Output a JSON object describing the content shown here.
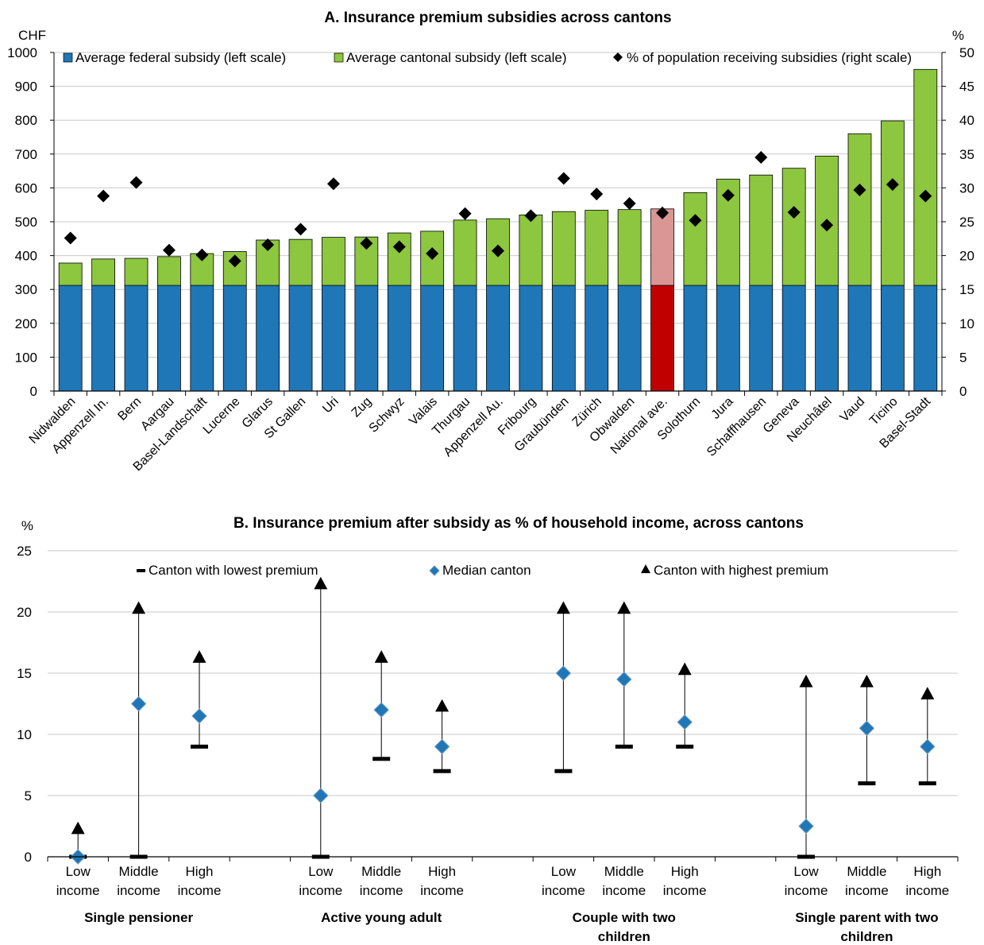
{
  "chart_data": [
    {
      "type": "bar",
      "stacked": true,
      "title": "A. Insurance premium subsidies across cantons",
      "left_unit": "CHF",
      "right_unit": "%",
      "ylim": [
        0,
        1000
      ],
      "yticks": [
        0,
        100,
        200,
        300,
        400,
        500,
        600,
        700,
        800,
        900,
        1000
      ],
      "y2lim": [
        0,
        50
      ],
      "y2ticks": [
        0,
        5,
        10,
        15,
        20,
        25,
        30,
        35,
        40,
        45,
        50
      ],
      "grid": true,
      "legend_position": "top",
      "highlight_category": "National ave.",
      "categories": [
        "Nidwalden",
        "Appenzell In.",
        "Bern",
        "Aargau",
        "Basel-Landschaft",
        "Lucerne",
        "Glarus",
        "St Gallen",
        "Uri",
        "Zug",
        "Schwyz",
        "Valais",
        "Thurgau",
        "Appenzell Au.",
        "Fribourg",
        "Graubünden",
        "Zürich",
        "Obwalden",
        "National ave.",
        "Solothurn",
        "Jura",
        "Schaffhausen",
        "Geneva",
        "Neuchâtel",
        "Vaud",
        "Ticino",
        "Basel-Stadt"
      ],
      "series": [
        {
          "name": "Average federal subsidy (left scale)",
          "axis": "left",
          "kind": "bar",
          "color": "#1f77b8",
          "highlight_color": "#c00000",
          "values": [
            312,
            312,
            312,
            312,
            312,
            312,
            312,
            312,
            312,
            312,
            312,
            312,
            312,
            312,
            312,
            312,
            312,
            312,
            312,
            312,
            312,
            312,
            312,
            312,
            312,
            312,
            312
          ]
        },
        {
          "name": "Average cantonal subsidy (left scale)",
          "axis": "left",
          "kind": "bar",
          "color": "#8dc63f",
          "highlight_color": "#d99694",
          "values": [
            66,
            78,
            80,
            85,
            94,
            100,
            134,
            136,
            142,
            143,
            155,
            160,
            193,
            197,
            208,
            218,
            222,
            224,
            226,
            274,
            314,
            326,
            346,
            382,
            448,
            486,
            638
          ]
        },
        {
          "name": "% of population receiving subsidies (right scale)",
          "axis": "right",
          "kind": "marker",
          "marker": "diamond",
          "color": "#000000",
          "values": [
            22.6,
            28.8,
            30.8,
            20.8,
            20.1,
            19.2,
            21.6,
            23.9,
            30.6,
            21.8,
            21.3,
            20.3,
            26.2,
            20.7,
            25.9,
            31.4,
            29.1,
            27.7,
            26.3,
            25.2,
            28.9,
            34.5,
            26.4,
            24.5,
            29.7,
            30.5,
            28.8
          ]
        }
      ]
    },
    {
      "type": "range",
      "title": "B. Insurance premium after subsidy as % of household income, across cantons",
      "y_unit": "%",
      "ylim": [
        0,
        25
      ],
      "yticks": [
        0,
        5,
        10,
        15,
        20,
        25
      ],
      "grid": true,
      "legend_position": "top",
      "legend": [
        {
          "name": "Canton with lowest premium",
          "marker": "dash",
          "color": "#000000"
        },
        {
          "name": "Median canton",
          "marker": "diamond",
          "color": "#1f77b8"
        },
        {
          "name": "Canton with highest premium",
          "marker": "triangle",
          "color": "#000000"
        }
      ],
      "groups": [
        {
          "label": "Single pensioner",
          "items": [
            {
              "label": [
                "Low",
                "income"
              ],
              "low": 0,
              "median": 0,
              "high": 2
            },
            {
              "label": [
                "Middle",
                "income"
              ],
              "low": 0,
              "median": 12.5,
              "high": 20
            },
            {
              "label": [
                "High",
                "income"
              ],
              "low": 9,
              "median": 11.5,
              "high": 16
            }
          ]
        },
        {
          "label": "Active young adult",
          "items": [
            {
              "label": [
                "Low",
                "income"
              ],
              "low": 0,
              "median": 5,
              "high": 22
            },
            {
              "label": [
                "Middle",
                "income"
              ],
              "low": 8,
              "median": 12,
              "high": 16
            },
            {
              "label": [
                "High",
                "income"
              ],
              "low": 7,
              "median": 9,
              "high": 12
            }
          ]
        },
        {
          "label": "Couple with two children",
          "items": [
            {
              "label": [
                "Low",
                "income"
              ],
              "low": 7,
              "median": 15,
              "high": 20
            },
            {
              "label": [
                "Middle",
                "income"
              ],
              "low": 9,
              "median": 14.5,
              "high": 20
            },
            {
              "label": [
                "High",
                "income"
              ],
              "low": 9,
              "median": 11,
              "high": 15
            }
          ]
        },
        {
          "label": "Single parent with two children",
          "items": [
            {
              "label": [
                "Low",
                "income"
              ],
              "low": 0,
              "median": 2.5,
              "high": 14
            },
            {
              "label": [
                "Middle",
                "income"
              ],
              "low": 6,
              "median": 10.5,
              "high": 14
            },
            {
              "label": [
                "High",
                "income"
              ],
              "low": 6,
              "median": 9,
              "high": 13
            }
          ]
        }
      ]
    }
  ]
}
